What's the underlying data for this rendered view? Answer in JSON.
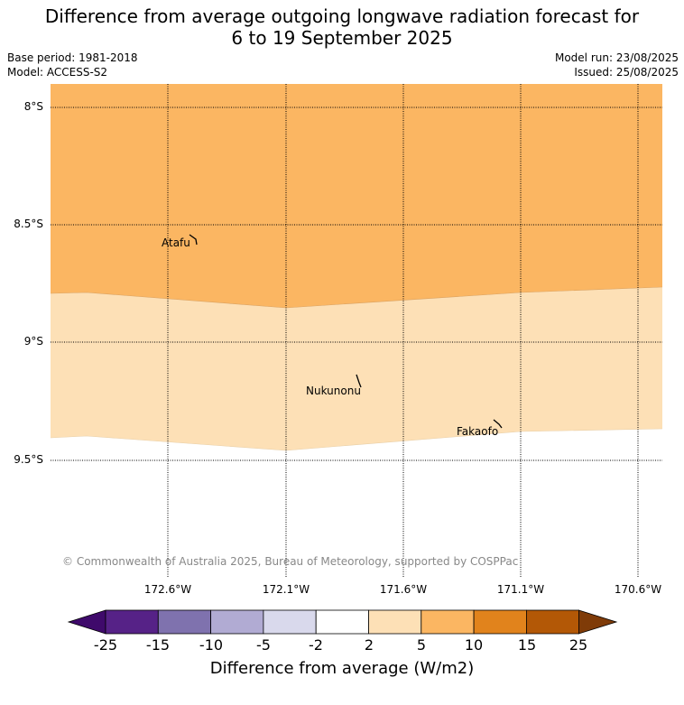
{
  "title_line1": "Difference from average outgoing longwave radiation forecast for",
  "title_line2": "6 to 19 September 2025",
  "base_period": "Base period: 1981-2018",
  "model": "Model: ACCESS-S2",
  "model_run": "Model run: 23/08/2025",
  "issued": "Issued: 25/08/2025",
  "lat_labels": [
    "8°S",
    "8.5°S",
    "9°S",
    "9.5°S"
  ],
  "lon_labels": [
    "172.6°W",
    "172.1°W",
    "171.6°W",
    "171.1°W",
    "170.6°W"
  ],
  "places": [
    "Atafu",
    "Nukunonu",
    "Fakaofo"
  ],
  "copyright": "© Commonwealth of Australia 2025, Bureau of Meteorology, supported by COSPPac",
  "colorbar": {
    "ticks": [
      "-25",
      "-15",
      "-10",
      "-5",
      "-2",
      "2",
      "5",
      "10",
      "15",
      "25"
    ],
    "label": "Difference from average (W/m2)",
    "colors": [
      "#3f0a6b",
      "#562287",
      "#7f72ae",
      "#b1abd3",
      "#d9d9ec",
      "#ffffff",
      "#fde0b6",
      "#fbb662",
      "#e1831c",
      "#b35806",
      "#7f3b08"
    ]
  },
  "map_colors": {
    "band_5_10": "#fbb662",
    "band_2_5": "#fde0b6",
    "neutral": "#ffffff"
  }
}
